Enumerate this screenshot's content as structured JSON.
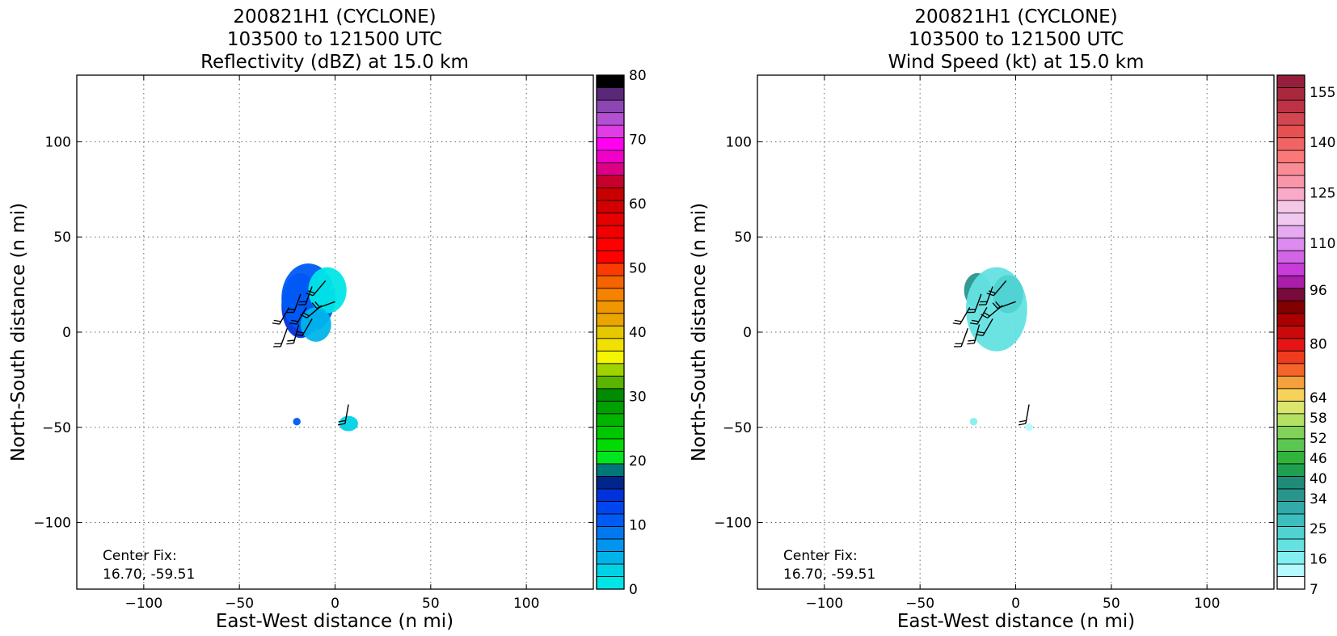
{
  "panels": [
    {
      "title_lines": [
        "200821H1 (CYCLONE)",
        "103500 to 121500 UTC",
        "Reflectivity (dBZ) at 15.0 km"
      ],
      "xlabel": "East-West distance (n mi)",
      "ylabel": "North-South distance (n mi)",
      "center_fix_lines": [
        "Center Fix:",
        "16.70, -59.51"
      ]
    },
    {
      "title_lines": [
        "200821H1 (CYCLONE)",
        "103500 to 121500 UTC",
        "Wind Speed (kt) at 15.0 km"
      ],
      "xlabel": "East-West distance (n mi)",
      "ylabel": "North-South distance (n mi)",
      "center_fix_lines": [
        "Center Fix:",
        "16.70, -59.51"
      ]
    }
  ],
  "chart_data": [
    {
      "type": "heatmap",
      "title": "200821H1 (CYCLONE) 103500 to 121500 UTC Reflectivity (dBZ) at 15.0 km",
      "xlabel": "East-West distance (n mi)",
      "ylabel": "North-South distance (n mi)",
      "xlim": [
        -135,
        135
      ],
      "ylim": [
        -135,
        135
      ],
      "xticks": [
        -100,
        -50,
        0,
        50,
        100
      ],
      "yticks": [
        -100,
        -50,
        0,
        50,
        100
      ],
      "xtick_labels": [
        "−100",
        "−50",
        "0",
        "50",
        "100"
      ],
      "ytick_labels": [
        "−100",
        "−50",
        "0",
        "50",
        "100"
      ],
      "grid": true,
      "colorbar": {
        "min": 0,
        "max": 80,
        "ticks": [
          0,
          10,
          20,
          30,
          40,
          50,
          60,
          70,
          80
        ],
        "colors": [
          "#00e6e6",
          "#00d2e6",
          "#00b4ea",
          "#0096f0",
          "#0078f0",
          "#005af5",
          "#0046f0",
          "#0032dc",
          "#00268c",
          "#007878",
          "#00e61e",
          "#00dc00",
          "#00c800",
          "#00b400",
          "#00a000",
          "#008c00",
          "#5ab400",
          "#a0d200",
          "#f5f500",
          "#f0e100",
          "#e6c800",
          "#eba500",
          "#f09600",
          "#f58200",
          "#f56400",
          "#fa3c00",
          "#ff0000",
          "#ff0000",
          "#f00000",
          "#e60000",
          "#d20000",
          "#c80000",
          "#c8002d",
          "#dc0087",
          "#f000c8",
          "#ff00f0",
          "#e13ce6",
          "#b450d2",
          "#8c46b4",
          "#5a2878",
          "#000000"
        ]
      },
      "echoes": [
        {
          "name": "main-echo-deep",
          "x": -18,
          "y": 14,
          "rx": 10,
          "ry": 17,
          "color": "#0032dc"
        },
        {
          "name": "main-echo-blue",
          "x": -14,
          "y": 18,
          "rx": 14,
          "ry": 18,
          "color": "#005af5"
        },
        {
          "name": "main-echo-cyan",
          "x": -4,
          "y": 22,
          "rx": 10,
          "ry": 12,
          "color": "#00e6e6"
        },
        {
          "name": "main-echo-mid",
          "x": -10,
          "y": 4,
          "rx": 8,
          "ry": 9,
          "color": "#00b4ea"
        },
        {
          "name": "south-echo-left",
          "x": -20,
          "y": -47,
          "rx": 2,
          "ry": 2,
          "color": "#005af5"
        },
        {
          "name": "south-echo-right",
          "x": 7,
          "y": -48,
          "rx": 5,
          "ry": 4,
          "color": "#00d2e6"
        }
      ],
      "wind_barbs": [
        {
          "x": -18,
          "y": 20,
          "dir": 200
        },
        {
          "x": -12,
          "y": 24,
          "dir": 200
        },
        {
          "x": -5,
          "y": 27,
          "dir": 220
        },
        {
          "x": -24,
          "y": 13,
          "dir": 210
        },
        {
          "x": -15,
          "y": 13,
          "dir": 210
        },
        {
          "x": -7,
          "y": 14,
          "dir": 230
        },
        {
          "x": 0,
          "y": 16,
          "dir": 250
        },
        {
          "x": -25,
          "y": 2,
          "dir": 200
        },
        {
          "x": -19,
          "y": 4,
          "dir": 195
        },
        {
          "x": -12,
          "y": 7,
          "dir": 210
        },
        {
          "x": 7,
          "y": -38,
          "dir": 190
        }
      ]
    },
    {
      "type": "heatmap",
      "title": "200821H1 (CYCLONE) 103500 to 121500 UTC Wind Speed (kt) at 15.0 km",
      "xlabel": "East-West distance (n mi)",
      "ylabel": "North-South distance (n mi)",
      "xlim": [
        -135,
        135
      ],
      "ylim": [
        -135,
        135
      ],
      "xticks": [
        -100,
        -50,
        0,
        50,
        100
      ],
      "yticks": [
        -100,
        -50,
        0,
        50,
        100
      ],
      "xtick_labels": [
        "−100",
        "−50",
        "0",
        "50",
        "100"
      ],
      "ytick_labels": [
        "−100",
        "−50",
        "0",
        "50",
        "100"
      ],
      "grid": true,
      "colorbar": {
        "min": 7,
        "max": 160,
        "ticks": [
          7,
          16,
          25,
          34,
          40,
          46,
          52,
          58,
          64,
          80,
          96,
          110,
          125,
          140,
          155
        ],
        "colors": [
          "#ffffff",
          "#b4faff",
          "#82f0f0",
          "#64e1e1",
          "#50d2d2",
          "#3cbebe",
          "#32aaaa",
          "#28968c",
          "#1e8c78",
          "#1ea050",
          "#32b43c",
          "#5ac850",
          "#82d25a",
          "#b4e164",
          "#dce66e",
          "#f5d25a",
          "#f5a03c",
          "#f56428",
          "#f03c1e",
          "#e61414",
          "#c80a0a",
          "#aa0000",
          "#820000",
          "#780a3c",
          "#aa1eaa",
          "#c83cdc",
          "#d264e6",
          "#dc8cf0",
          "#e6aaf0",
          "#f0c8f0",
          "#f5c8e6",
          "#faaac8",
          "#fa96aa",
          "#fa8c96",
          "#fa7878",
          "#f06464",
          "#e65050",
          "#d24650",
          "#be3246",
          "#aa283c",
          "#961e3c"
        ]
      },
      "echoes": [
        {
          "name": "main-echo-teal",
          "x": -20,
          "y": 22,
          "rx": 7,
          "ry": 9,
          "color": "#28968c"
        },
        {
          "name": "main-echo-light",
          "x": -10,
          "y": 12,
          "rx": 16,
          "ry": 22,
          "color": "#64e1e1"
        },
        {
          "name": "main-echo-mid",
          "x": -4,
          "y": 20,
          "rx": 8,
          "ry": 10,
          "color": "#50d2d2"
        },
        {
          "name": "south-echo-left",
          "x": -22,
          "y": -47,
          "rx": 2,
          "ry": 2,
          "color": "#82f0f0"
        },
        {
          "name": "south-echo-right",
          "x": 7,
          "y": -50,
          "rx": 2,
          "ry": 2,
          "color": "#b4faff"
        }
      ],
      "wind_barbs": [
        {
          "x": -18,
          "y": 20,
          "dir": 200
        },
        {
          "x": -12,
          "y": 24,
          "dir": 200
        },
        {
          "x": -5,
          "y": 27,
          "dir": 220
        },
        {
          "x": -24,
          "y": 13,
          "dir": 210
        },
        {
          "x": -15,
          "y": 13,
          "dir": 210
        },
        {
          "x": -7,
          "y": 14,
          "dir": 230
        },
        {
          "x": 0,
          "y": 16,
          "dir": 250
        },
        {
          "x": -25,
          "y": 2,
          "dir": 200
        },
        {
          "x": -19,
          "y": 4,
          "dir": 195
        },
        {
          "x": -12,
          "y": 7,
          "dir": 210
        },
        {
          "x": 7,
          "y": -38,
          "dir": 190
        }
      ]
    }
  ]
}
